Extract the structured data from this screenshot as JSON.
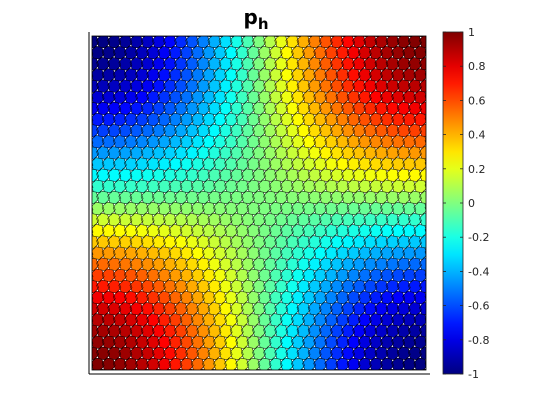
{
  "chart_data": {
    "type": "heatmap",
    "title": {
      "main": "p",
      "subscript": "h"
    },
    "field": "cos(pi*x)*cos(pi*y)",
    "x_range": [
      0,
      1
    ],
    "y_range": [
      0,
      1
    ],
    "value_range": [
      -1,
      1
    ],
    "colormap": "jet",
    "colorbar": {
      "placement": "right",
      "ticks": [
        1,
        0.8,
        0.6,
        0.4,
        0.2,
        0,
        -0.2,
        -0.4,
        -0.6,
        -0.8,
        -1
      ],
      "tick_labels": [
        "1",
        "0.8",
        "0.6",
        "0.4",
        "0.2",
        "0",
        "-0.2",
        "-0.4",
        "-0.6",
        "-0.8",
        "-1"
      ]
    },
    "mesh": {
      "type": "polygonal",
      "edge_color": "#000000",
      "cells_x": 30,
      "cells_y": 30
    },
    "extrema": [
      {
        "quadrant": "top-left",
        "value": -1
      },
      {
        "quadrant": "top-right",
        "value": 1
      },
      {
        "quadrant": "bottom-left",
        "value": 1
      },
      {
        "quadrant": "bottom-right",
        "value": -1
      }
    ],
    "xlabel": "",
    "ylabel": "",
    "grid": false
  }
}
